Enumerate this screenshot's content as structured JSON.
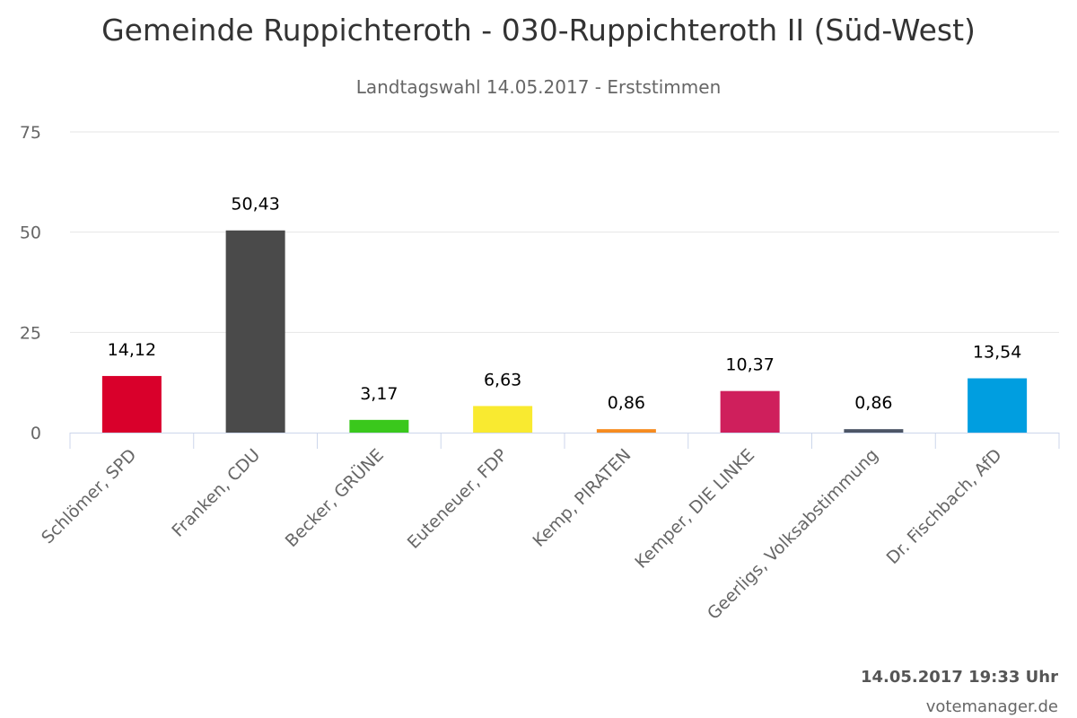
{
  "chart_data": {
    "type": "bar",
    "title": "Gemeinde Ruppichteroth - 030-Ruppichteroth II (Süd-West)",
    "subtitle": "Landtagswahl 14.05.2017 - Erststimmen",
    "xlabel": "",
    "ylabel": "",
    "ylim": [
      0,
      75
    ],
    "yticks": [
      0,
      25,
      50,
      75
    ],
    "grid": true,
    "categories": [
      "Schlömer, SPD",
      "Franken, CDU",
      "Becker, GRÜNE",
      "Euteneuer, FDP",
      "Kemp, PIRATEN",
      "Kemper, DIE LINKE",
      "Geerligs, Volksabstimmung",
      "Dr. Fischbach, AfD"
    ],
    "values": [
      14.12,
      50.43,
      3.17,
      6.63,
      0.86,
      10.37,
      0.86,
      13.54
    ],
    "value_labels": [
      "14,12",
      "50,43",
      "3,17",
      "6,63",
      "0,86",
      "10,37",
      "0,86",
      "13,54"
    ],
    "colors": [
      "#d9002b",
      "#4a4a4a",
      "#3ac81c",
      "#f9ea30",
      "#f68b1f",
      "#cf1f5c",
      "#4c5566",
      "#009ee0"
    ]
  },
  "footer": {
    "timestamp": "14.05.2017 19:33 Uhr",
    "source": "votemanager.de"
  }
}
